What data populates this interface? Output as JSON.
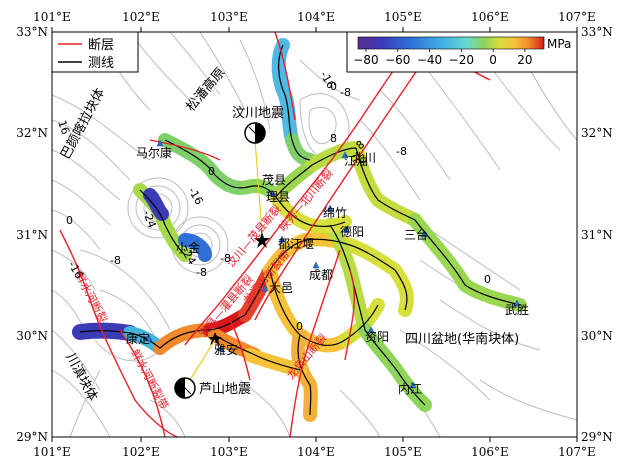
{
  "map": {
    "xaxis": {
      "ticks": [
        {
          "lon": 101,
          "label": "101°E"
        },
        {
          "lon": 102,
          "label": "102°E"
        },
        {
          "lon": 103,
          "label": "103°E"
        },
        {
          "lon": 104,
          "label": "104°E"
        },
        {
          "lon": 105,
          "label": "105°E"
        },
        {
          "lon": 106,
          "label": "106°E"
        },
        {
          "lon": 107,
          "label": "107°E"
        }
      ]
    },
    "yaxis": {
      "ticks": [
        {
          "lat": 33,
          "label": "33°N"
        },
        {
          "lat": 32,
          "label": "32°N"
        },
        {
          "lat": 31,
          "label": "31°N"
        },
        {
          "lat": 30,
          "label": "30°N"
        },
        {
          "lat": 29,
          "label": "29°N"
        }
      ]
    },
    "legend": {
      "fault_label": "断层",
      "fault_color": "#e8202a",
      "survey_label": "测线",
      "survey_color": "#000000"
    },
    "colorbar": {
      "unit": "MPa",
      "tick_labels": [
        "−80",
        "−60",
        "−40",
        "−20",
        "0",
        "20"
      ],
      "tick_values": [
        -80,
        -60,
        -40,
        -20,
        0,
        20
      ],
      "range": [
        -85,
        32
      ],
      "colors": [
        "#5b2c8c",
        "#3b3bb6",
        "#2f6fd6",
        "#3fb0e6",
        "#66d9d0",
        "#8fd45a",
        "#d7df3c",
        "#f6c23a",
        "#f08a2c",
        "#d7191c"
      ]
    },
    "regions": [
      {
        "text": "巴颜喀拉块体",
        "color": "#000"
      },
      {
        "text": "松潘高原",
        "color": "#000"
      },
      {
        "text": "川滇块体",
        "color": "#000"
      },
      {
        "text": "四川盆地(华南块体)",
        "color": "#000"
      }
    ],
    "earthquakes": [
      {
        "name": "汶川地震"
      },
      {
        "name": "芦山地震"
      }
    ],
    "cities": [
      {
        "name": "马尔康"
      },
      {
        "name": "茂县"
      },
      {
        "name": "江油"
      },
      {
        "name": "理县"
      },
      {
        "name": "绵竹"
      },
      {
        "name": "德阳"
      },
      {
        "name": "都江堰"
      },
      {
        "name": "小金"
      },
      {
        "name": "成都"
      },
      {
        "name": "大邑"
      },
      {
        "name": "康定"
      },
      {
        "name": "雅安"
      },
      {
        "name": "资阳"
      },
      {
        "name": "内江"
      },
      {
        "name": "武胜"
      },
      {
        "name": "三台"
      },
      {
        "name": "北川"
      }
    ],
    "fault_names": [
      {
        "text": "龙门山断裂带"
      },
      {
        "text": "映秀—北川断裂"
      },
      {
        "text": "汶川—茂县断裂"
      },
      {
        "text": "鲜水河断裂"
      },
      {
        "text": "鲜水河断裂带"
      },
      {
        "text": "龙泉山断裂"
      },
      {
        "text": "安县—灌县断裂"
      }
    ],
    "contour_labels": [
      "16",
      "-16",
      "0",
      "-8",
      "0",
      "-8",
      "-16",
      "-24",
      "-24",
      "0",
      "-8",
      "8",
      "-8",
      "-16",
      "-8",
      "8",
      "0",
      "0"
    ]
  }
}
